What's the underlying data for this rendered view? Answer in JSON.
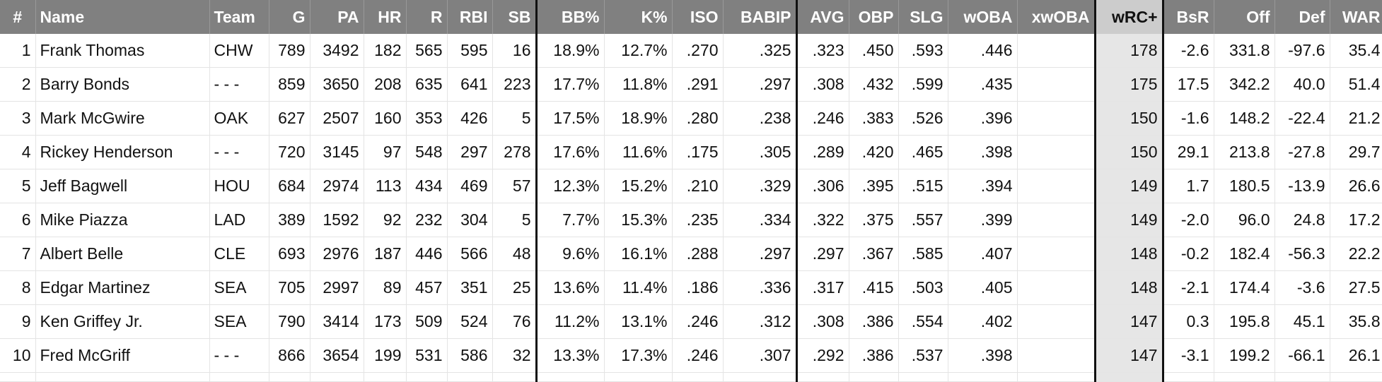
{
  "columns": [
    "#",
    "Name",
    "Team",
    "G",
    "PA",
    "HR",
    "R",
    "RBI",
    "SB",
    "BB%",
    "K%",
    "ISO",
    "BABIP",
    "AVG",
    "OBP",
    "SLG",
    "wOBA",
    "xwOBA",
    "wRC+",
    "BsR",
    "Off",
    "Def",
    "WAR"
  ],
  "rows": [
    [
      "1",
      "Frank Thomas",
      "CHW",
      "789",
      "3492",
      "182",
      "565",
      "595",
      "16",
      "18.9%",
      "12.7%",
      ".270",
      ".325",
      ".323",
      ".450",
      ".593",
      ".446",
      "",
      "178",
      "-2.6",
      "331.8",
      "-97.6",
      "35.4"
    ],
    [
      "2",
      "Barry Bonds",
      "- - -",
      "859",
      "3650",
      "208",
      "635",
      "641",
      "223",
      "17.7%",
      "11.8%",
      ".291",
      ".297",
      ".308",
      ".432",
      ".599",
      ".435",
      "",
      "175",
      "17.5",
      "342.2",
      "40.0",
      "51.4"
    ],
    [
      "3",
      "Mark McGwire",
      "OAK",
      "627",
      "2507",
      "160",
      "353",
      "426",
      "5",
      "17.5%",
      "18.9%",
      ".280",
      ".238",
      ".246",
      ".383",
      ".526",
      ".396",
      "",
      "150",
      "-1.6",
      "148.2",
      "-22.4",
      "21.2"
    ],
    [
      "4",
      "Rickey Henderson",
      "- - -",
      "720",
      "3145",
      "97",
      "548",
      "297",
      "278",
      "17.6%",
      "11.6%",
      ".175",
      ".305",
      ".289",
      ".420",
      ".465",
      ".398",
      "",
      "150",
      "29.1",
      "213.8",
      "-27.8",
      "29.7"
    ],
    [
      "5",
      "Jeff Bagwell",
      "HOU",
      "684",
      "2974",
      "113",
      "434",
      "469",
      "57",
      "12.3%",
      "15.2%",
      ".210",
      ".329",
      ".306",
      ".395",
      ".515",
      ".394",
      "",
      "149",
      "1.7",
      "180.5",
      "-13.9",
      "26.6"
    ],
    [
      "6",
      "Mike Piazza",
      "LAD",
      "389",
      "1592",
      "92",
      "232",
      "304",
      "5",
      "7.7%",
      "15.3%",
      ".235",
      ".334",
      ".322",
      ".375",
      ".557",
      ".399",
      "",
      "149",
      "-2.0",
      "96.0",
      "24.8",
      "17.2"
    ],
    [
      "7",
      "Albert Belle",
      "CLE",
      "693",
      "2976",
      "187",
      "446",
      "566",
      "48",
      "9.6%",
      "16.1%",
      ".288",
      ".297",
      ".297",
      ".367",
      ".585",
      ".407",
      "",
      "148",
      "-0.2",
      "182.4",
      "-56.3",
      "22.2"
    ],
    [
      "8",
      "Edgar Martinez",
      "SEA",
      "705",
      "2997",
      "89",
      "457",
      "351",
      "25",
      "13.6%",
      "11.4%",
      ".186",
      ".336",
      ".317",
      ".415",
      ".503",
      ".405",
      "",
      "148",
      "-2.1",
      "174.4",
      "-3.6",
      "27.5"
    ],
    [
      "9",
      "Ken Griffey Jr.",
      "SEA",
      "790",
      "3414",
      "173",
      "509",
      "524",
      "76",
      "11.2%",
      "13.1%",
      ".246",
      ".312",
      ".308",
      ".386",
      ".554",
      ".402",
      "",
      "147",
      "0.3",
      "195.8",
      "45.1",
      "35.8"
    ],
    [
      "10",
      "Fred McGriff",
      "- - -",
      "866",
      "3654",
      "199",
      "531",
      "586",
      "32",
      "13.3%",
      "17.3%",
      ".246",
      ".307",
      ".292",
      ".386",
      ".537",
      ".398",
      "",
      "147",
      "-3.1",
      "199.2",
      "-66.1",
      "26.1"
    ]
  ],
  "colors": {
    "header_bg": "#808080",
    "header_text": "#ffffff",
    "highlight_header_bg": "#cccccc",
    "highlight_cell_bg": "#e6e6e6",
    "separator": "#111111"
  }
}
